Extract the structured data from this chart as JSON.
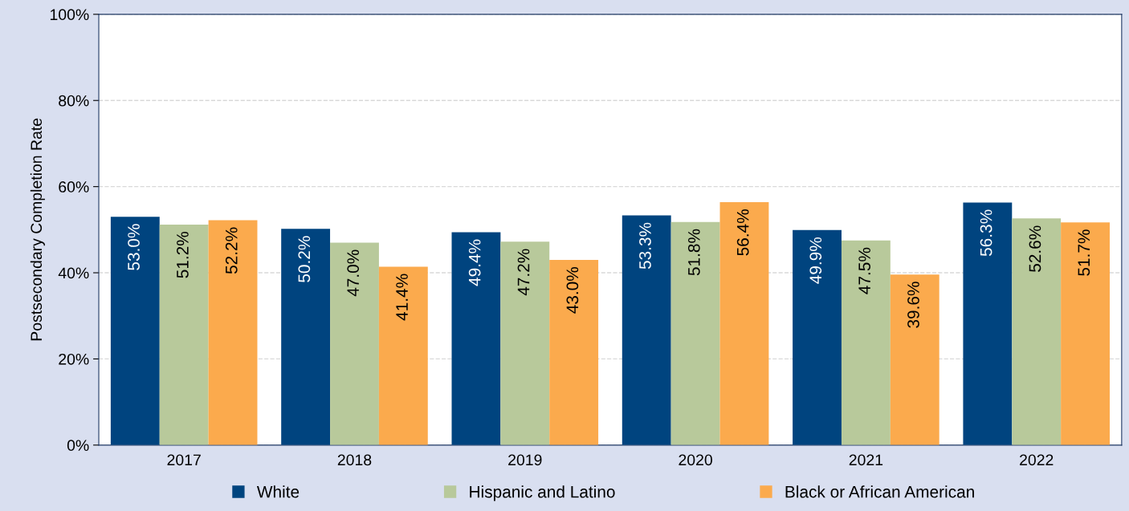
{
  "chart_data": {
    "type": "bar",
    "ylabel": "Postsecondary Completion Rate",
    "categories": [
      "2017",
      "2018",
      "2019",
      "2020",
      "2021",
      "2022"
    ],
    "series": [
      {
        "name": "White",
        "color": "#00447f",
        "values": [
          53.0,
          50.2,
          49.4,
          53.3,
          49.9,
          56.3
        ],
        "value_labels": [
          "53.0%",
          "50.2%",
          "49.4%",
          "53.3%",
          "49.9%",
          "56.3%"
        ]
      },
      {
        "name": "Hispanic and Latino",
        "color": "#b8c99b",
        "values": [
          51.2,
          47.0,
          47.2,
          51.8,
          47.5,
          52.6
        ],
        "value_labels": [
          "51.2%",
          "47.0%",
          "47.2%",
          "51.8%",
          "47.5%",
          "52.6%"
        ]
      },
      {
        "name": "Black or African American",
        "color": "#fbaa4d",
        "values": [
          52.2,
          41.4,
          43.0,
          56.4,
          39.6,
          51.7
        ],
        "value_labels": [
          "52.2%",
          "41.4%",
          "43.0%",
          "56.4%",
          "39.6%",
          "51.7%"
        ]
      }
    ],
    "ylim": [
      0,
      100
    ],
    "yticks": [
      {
        "value": 0,
        "label": "0%"
      },
      {
        "value": 20,
        "label": "20%"
      },
      {
        "value": 40,
        "label": "40%"
      },
      {
        "value": 60,
        "label": "60%"
      },
      {
        "value": 80,
        "label": "80%"
      },
      {
        "value": 100,
        "label": "100%"
      }
    ],
    "grid": "y",
    "legend": "bottom"
  }
}
